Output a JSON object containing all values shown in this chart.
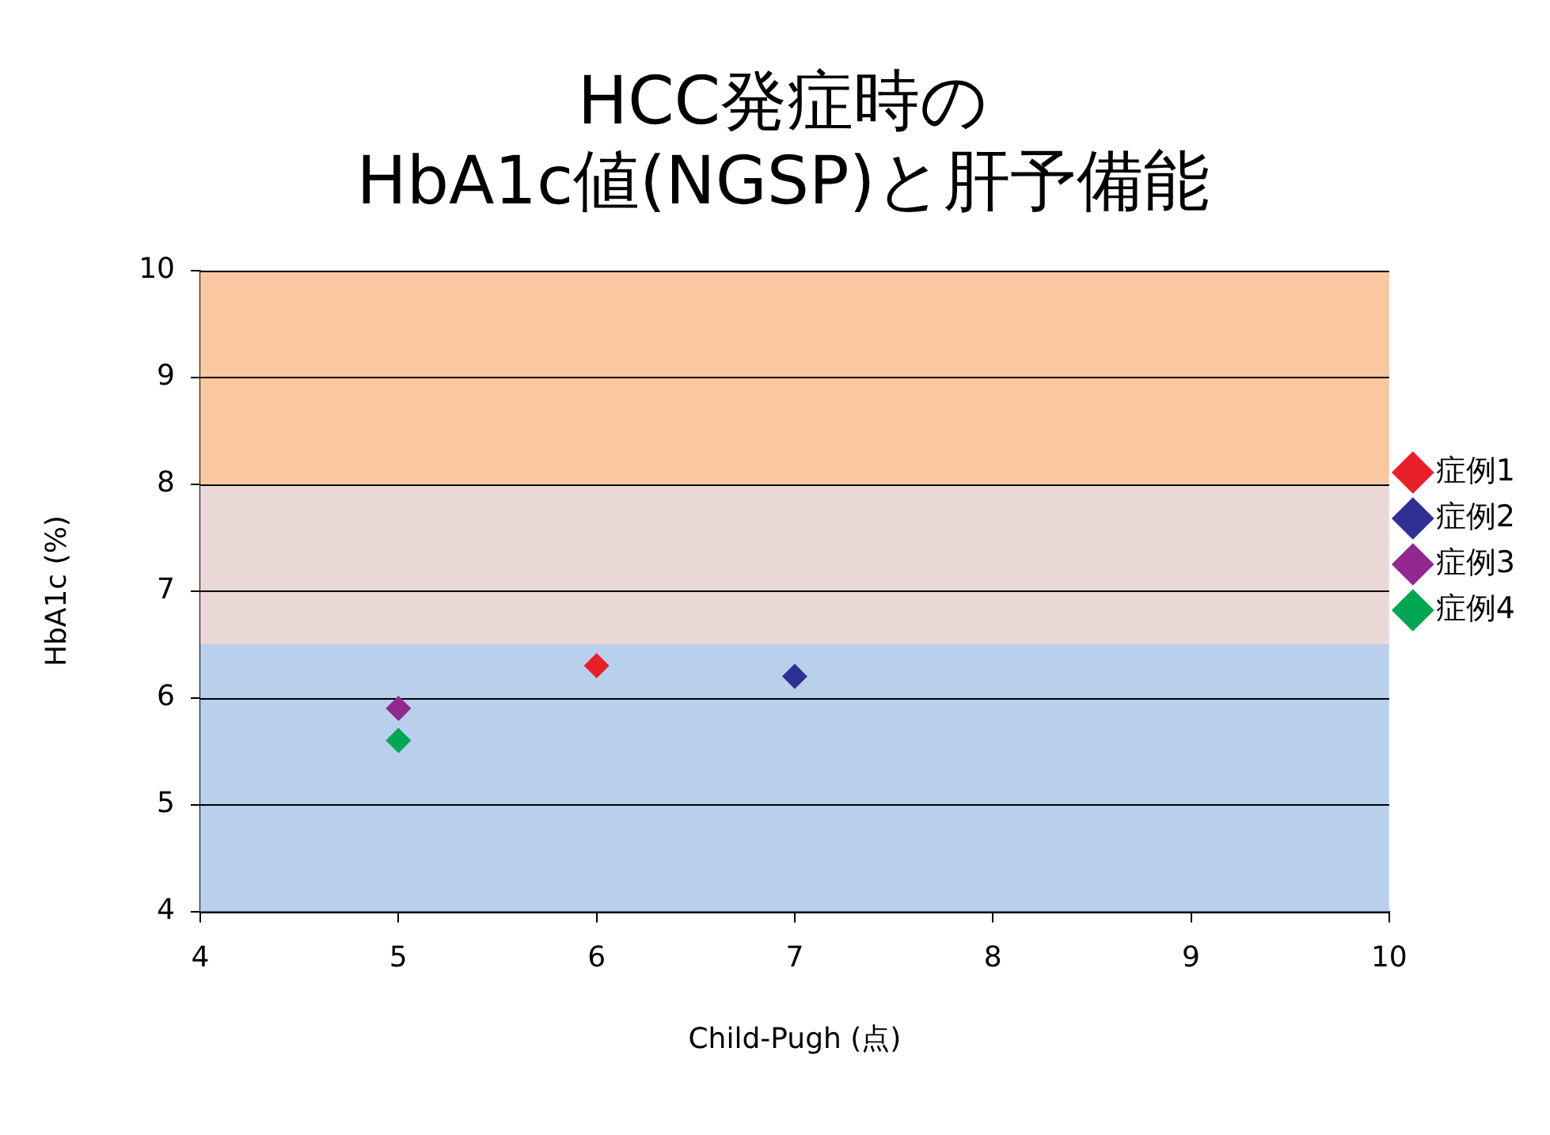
{
  "chart_data": {
    "type": "scatter",
    "title": "HCC発症時の\nHbA1c値(NGSP)と肝予備能",
    "xlabel": "Child-Pugh (点)",
    "ylabel": "HbA1c (%)",
    "xlim": [
      4,
      10
    ],
    "xticks": [
      4,
      5,
      6,
      7,
      8,
      9,
      10
    ],
    "ylim": [
      4,
      10
    ],
    "yticks": [
      4,
      5,
      6,
      7,
      8,
      9,
      10
    ],
    "grid": "y",
    "legend": "right",
    "marker": "diamond",
    "bands": [
      {
        "axis": "y",
        "from": 4,
        "to": 6.5,
        "color": "#b9d0ec"
      },
      {
        "axis": "y",
        "from": 6.5,
        "to": 8,
        "color": "#ead8d6"
      },
      {
        "axis": "y",
        "from": 8,
        "to": 10,
        "color": "#f9c8a0"
      }
    ],
    "series": [
      {
        "name": "症例1",
        "color": "#e8202a",
        "x": [
          6
        ],
        "values": [
          6.3
        ]
      },
      {
        "name": "症例2",
        "color": "#2e3192",
        "x": [
          7
        ],
        "values": [
          6.2
        ]
      },
      {
        "name": "症例3",
        "color": "#92278f",
        "x": [
          5
        ],
        "values": [
          5.9
        ]
      },
      {
        "name": "症例4",
        "color": "#00a651",
        "x": [
          5
        ],
        "values": [
          5.6
        ]
      }
    ]
  }
}
